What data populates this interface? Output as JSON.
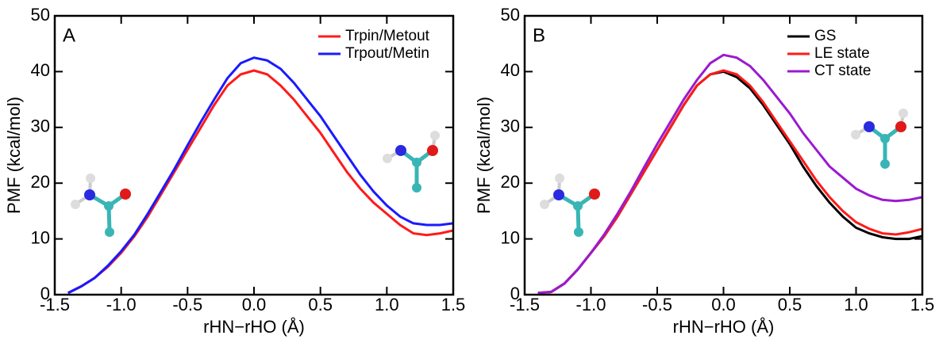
{
  "chart_data": [
    {
      "type": "line",
      "panel_label": "A",
      "xlabel": "rHN−rHO (Å)",
      "ylabel": "PMF (kcal/mol)",
      "x": [
        -1.4,
        -1.3,
        -1.2,
        -1.1,
        -1.0,
        -0.9,
        -0.8,
        -0.7,
        -0.6,
        -0.5,
        -0.4,
        -0.3,
        -0.2,
        -0.1,
        0,
        0.1,
        0.2,
        0.3,
        0.4,
        0.5,
        0.6,
        0.7,
        0.8,
        0.9,
        1.0,
        1.1,
        1.2,
        1.3,
        1.4,
        1.5
      ],
      "series": [
        {
          "name": "Trpin/Metout",
          "color": "#ff1a1a",
          "values": [
            0.3,
            1.5,
            3,
            5,
            7.5,
            10.5,
            14,
            18,
            22,
            26,
            30,
            34,
            37.5,
            39.5,
            40.2,
            39.5,
            37.5,
            35,
            32,
            29,
            25.5,
            22,
            19,
            16.5,
            14.5,
            12.5,
            11,
            10.7,
            11,
            11.5
          ]
        },
        {
          "name": "Trpout/Metin",
          "color": "#1a1aff",
          "values": [
            0.3,
            1.5,
            3,
            5.2,
            7.8,
            10.8,
            14.5,
            18.5,
            22.5,
            26.8,
            31,
            35,
            38.8,
            41.5,
            42.5,
            42,
            40.5,
            38,
            35,
            32,
            28.5,
            25,
            21.5,
            18.5,
            16,
            14,
            12.8,
            12.5,
            12.5,
            12.8
          ]
        }
      ],
      "xlim": [
        -1.5,
        1.5
      ],
      "ylim": [
        0,
        50
      ],
      "xticks": [
        -1.5,
        {
          "value": -1.0,
          "label": "-1.0"
        },
        -0.5,
        {
          "value": 0,
          "label": "0.0"
        },
        0.5,
        {
          "value": 1.0,
          "label": "1.0"
        },
        1.5
      ],
      "yticks": [
        0,
        10,
        20,
        30,
        40,
        50
      ],
      "legend": "upper right"
    },
    {
      "type": "line",
      "panel_label": "B",
      "xlabel": "rHN−rHO (Å)",
      "ylabel": "PMF (kcal/mol)",
      "x": [
        -1.4,
        -1.3,
        -1.2,
        -1.1,
        -1.0,
        -0.9,
        -0.8,
        -0.7,
        -0.6,
        -0.5,
        -0.4,
        -0.3,
        -0.2,
        -0.1,
        0,
        0.1,
        0.2,
        0.3,
        0.4,
        0.5,
        0.6,
        0.7,
        0.8,
        0.9,
        1.0,
        1.1,
        1.2,
        1.3,
        1.4,
        1.5
      ],
      "series": [
        {
          "name": "GS",
          "color": "#000000",
          "values": [
            0.3,
            0.5,
            2,
            4.5,
            7.5,
            10.5,
            14,
            18,
            22,
            26,
            30,
            34,
            37.5,
            39.5,
            40,
            39,
            37,
            34,
            30.5,
            27,
            23,
            19.5,
            16.5,
            14,
            12,
            11,
            10.3,
            10,
            10,
            10.5
          ]
        },
        {
          "name": "LE state",
          "color": "#ff1a1a",
          "values": [
            0.3,
            0.5,
            2,
            4.5,
            7.5,
            10.5,
            14,
            18,
            22,
            26,
            30,
            34,
            37.5,
            39.5,
            40.2,
            39.5,
            37.5,
            34.5,
            31,
            27.5,
            24,
            20.5,
            17.5,
            15,
            13,
            11.8,
            11,
            10.8,
            11.2,
            11.8
          ]
        },
        {
          "name": "CT state",
          "color": "#9a1ad0",
          "values": [
            0.3,
            0.5,
            2,
            4.5,
            7.5,
            10.8,
            14.5,
            18.5,
            22.8,
            27,
            31,
            35,
            38.5,
            41.5,
            43,
            42.5,
            41,
            38.5,
            35.5,
            32.5,
            29,
            26,
            23,
            21,
            19,
            17.8,
            17,
            16.8,
            17,
            17.5
          ]
        }
      ],
      "xlim": [
        -1.5,
        1.5
      ],
      "ylim": [
        0,
        50
      ],
      "xticks": [
        -1.5,
        {
          "value": -1.0,
          "label": "-1.0"
        },
        -0.5,
        {
          "value": 0,
          "label": "0.0"
        },
        0.5,
        {
          "value": 1.0,
          "label": "1.0"
        },
        1.5
      ],
      "yticks": [
        0,
        10,
        20,
        30,
        40,
        50
      ],
      "legend": "upper right"
    }
  ]
}
